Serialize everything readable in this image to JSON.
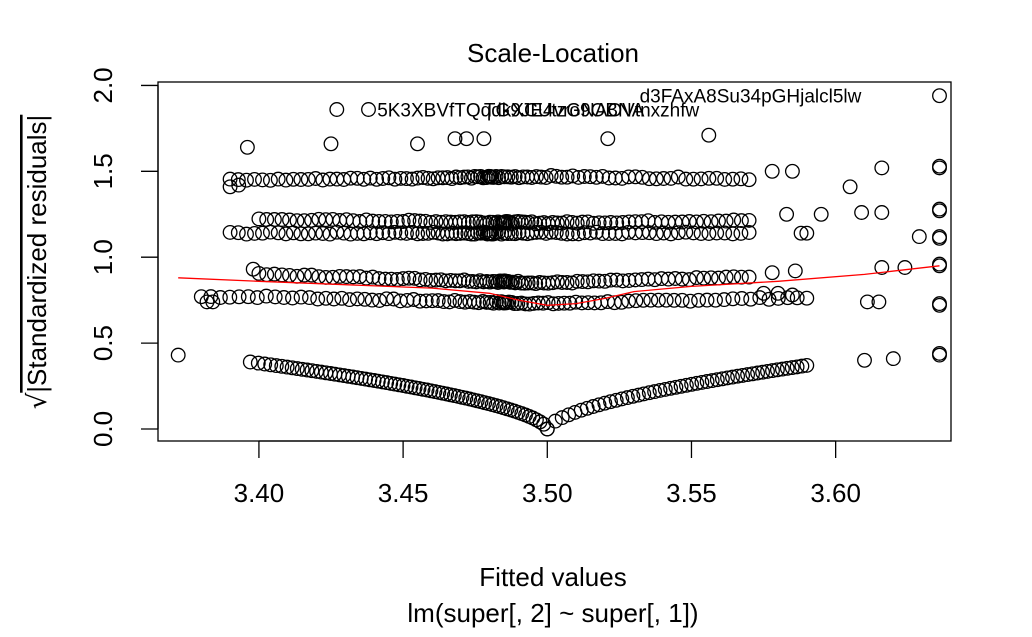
{
  "chart_data": {
    "type": "scatter",
    "title": "Scale-Location",
    "xlabel": "Fitted values",
    "subtitle": "lm(super[, 2] ~ super[, 1])",
    "ylabel_sqrt_sign": "√",
    "ylabel_inner": "|Standardized residuals|",
    "xlim": [
      3.365,
      3.64
    ],
    "ylim": [
      -0.07,
      2.02
    ],
    "xticks": [
      3.4,
      3.45,
      3.5,
      3.55,
      3.6
    ],
    "xtick_labels": [
      "3.40",
      "3.45",
      "3.50",
      "3.55",
      "3.60"
    ],
    "yticks": [
      0.0,
      0.5,
      1.0,
      1.5,
      2.0
    ],
    "ytick_labels": [
      "0.0",
      "0.5",
      "1.0",
      "1.5",
      "2.0"
    ],
    "grid": false,
    "legend": "none",
    "colors": {
      "points": "#000000",
      "smoother": "#ff0000"
    },
    "bands": {
      "v_center": 3.5,
      "v_left_end": [
        3.397,
        0.39
      ],
      "v_right_end": [
        3.59,
        0.37
      ],
      "levels": [
        {
          "y": 0.77,
          "dip": -0.04,
          "x_min": 3.38,
          "x_max": 3.59
        },
        {
          "y": 0.9,
          "dip": -0.05,
          "x_min": 3.4,
          "x_max": 3.57
        },
        {
          "y": 1.14,
          "dip": 0.0,
          "x_min": 3.39,
          "x_max": 3.57
        },
        {
          "y": 1.22,
          "dip": -0.02,
          "x_min": 3.4,
          "x_max": 3.57
        },
        {
          "y": 1.45,
          "dip": 0.02,
          "x_min": 3.39,
          "x_max": 3.57
        }
      ]
    },
    "extra_points": [
      [
        3.372,
        0.43
      ],
      [
        3.382,
        0.74
      ],
      [
        3.384,
        0.74
      ],
      [
        3.39,
        1.41
      ],
      [
        3.393,
        1.42
      ],
      [
        3.396,
        1.64
      ],
      [
        3.398,
        0.93
      ],
      [
        3.427,
        1.86
      ],
      [
        3.425,
        1.66
      ],
      [
        3.438,
        1.86
      ],
      [
        3.455,
        1.66
      ],
      [
        3.468,
        1.69
      ],
      [
        3.472,
        1.69
      ],
      [
        3.478,
        1.69
      ],
      [
        3.521,
        1.69
      ],
      [
        3.556,
        1.71
      ],
      [
        3.605,
        1.41
      ],
      [
        3.609,
        1.26
      ],
      [
        3.611,
        0.74
      ],
      [
        3.615,
        0.74
      ],
      [
        3.616,
        1.26
      ],
      [
        3.616,
        1.52
      ],
      [
        3.616,
        0.94
      ],
      [
        3.61,
        0.4
      ],
      [
        3.62,
        0.41
      ],
      [
        3.624,
        0.94
      ],
      [
        3.629,
        1.12
      ],
      [
        3.583,
        1.25
      ],
      [
        3.585,
        1.5
      ],
      [
        3.595,
        1.25
      ],
      [
        3.588,
        1.14
      ],
      [
        3.59,
        1.14
      ],
      [
        3.578,
        0.91
      ],
      [
        3.586,
        0.92
      ],
      [
        3.58,
        0.79
      ],
      [
        3.585,
        0.78
      ],
      [
        3.575,
        0.79
      ],
      [
        3.578,
        1.5
      ]
    ],
    "right_column": {
      "x": 3.636,
      "y_values": [
        1.94,
        1.53,
        1.52,
        1.28,
        1.27,
        1.12,
        1.11,
        0.96,
        0.95,
        0.73,
        0.72,
        0.44,
        0.43
      ]
    },
    "smoother": {
      "x": [
        3.372,
        3.4,
        3.43,
        3.46,
        3.48,
        3.49,
        3.5,
        3.51,
        3.52,
        3.53,
        3.55,
        3.58,
        3.61,
        3.636
      ],
      "y": [
        0.88,
        0.86,
        0.84,
        0.82,
        0.79,
        0.75,
        0.72,
        0.73,
        0.76,
        0.8,
        0.83,
        0.86,
        0.9,
        0.95
      ]
    },
    "annotations": [
      {
        "text": "5K3XBVfTQqdkXCUtzGNAOVtnxzhfw",
        "x": 3.441,
        "y": 1.86
      },
      {
        "text": "TG9JE4vro9OBNA",
        "x": 3.478,
        "y": 1.86
      },
      {
        "text": "d3FAxA8Su34pGHjalcl5lw",
        "x": 3.532,
        "y": 1.94
      }
    ]
  }
}
